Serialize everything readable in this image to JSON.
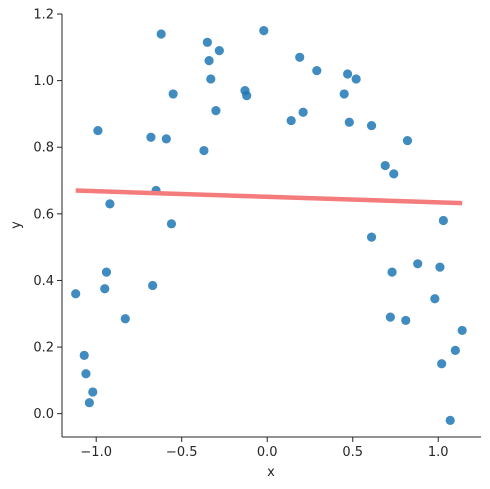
{
  "chart_data": {
    "type": "scatter",
    "title": "",
    "xlabel": "x",
    "ylabel": "y",
    "xlim": [
      -1.2,
      1.25
    ],
    "ylim": [
      -0.07,
      1.2
    ],
    "xticks": [
      -1.0,
      -0.5,
      0.0,
      0.5,
      1.0
    ],
    "xtick_labels": [
      "−1.0",
      "−0.5",
      "0.0",
      "0.5",
      "1.0"
    ],
    "yticks": [
      0.0,
      0.2,
      0.4,
      0.6,
      0.8,
      1.0,
      1.2
    ],
    "ytick_labels": [
      "0.0",
      "0.2",
      "0.4",
      "0.6",
      "0.8",
      "1.0",
      "1.2"
    ],
    "grid": false,
    "point_color": "#1f77b4",
    "line_color": "#f47c7c",
    "points": [
      {
        "x": -1.12,
        "y": 0.36
      },
      {
        "x": -1.07,
        "y": 0.175
      },
      {
        "x": -1.06,
        "y": 0.12
      },
      {
        "x": -1.04,
        "y": 0.033
      },
      {
        "x": -1.02,
        "y": 0.065
      },
      {
        "x": -0.99,
        "y": 0.85
      },
      {
        "x": -0.95,
        "y": 0.375
      },
      {
        "x": -0.94,
        "y": 0.425
      },
      {
        "x": -0.92,
        "y": 0.63
      },
      {
        "x": -0.83,
        "y": 0.285
      },
      {
        "x": -0.68,
        "y": 0.83
      },
      {
        "x": -0.67,
        "y": 0.385
      },
      {
        "x": -0.65,
        "y": 0.67
      },
      {
        "x": -0.62,
        "y": 1.14
      },
      {
        "x": -0.59,
        "y": 0.825
      },
      {
        "x": -0.56,
        "y": 0.57
      },
      {
        "x": -0.55,
        "y": 0.96
      },
      {
        "x": -0.37,
        "y": 0.79
      },
      {
        "x": -0.35,
        "y": 1.115
      },
      {
        "x": -0.34,
        "y": 1.06
      },
      {
        "x": -0.33,
        "y": 1.005
      },
      {
        "x": -0.3,
        "y": 0.91
      },
      {
        "x": -0.28,
        "y": 1.09
      },
      {
        "x": -0.13,
        "y": 0.97
      },
      {
        "x": -0.12,
        "y": 0.955
      },
      {
        "x": -0.02,
        "y": 1.15
      },
      {
        "x": 0.14,
        "y": 0.88
      },
      {
        "x": 0.19,
        "y": 1.07
      },
      {
        "x": 0.21,
        "y": 0.905
      },
      {
        "x": 0.29,
        "y": 1.03
      },
      {
        "x": 0.45,
        "y": 0.96
      },
      {
        "x": 0.47,
        "y": 1.02
      },
      {
        "x": 0.48,
        "y": 0.875
      },
      {
        "x": 0.52,
        "y": 1.005
      },
      {
        "x": 0.61,
        "y": 0.865
      },
      {
        "x": 0.61,
        "y": 0.53
      },
      {
        "x": 0.69,
        "y": 0.745
      },
      {
        "x": 0.72,
        "y": 0.29
      },
      {
        "x": 0.73,
        "y": 0.425
      },
      {
        "x": 0.74,
        "y": 0.72
      },
      {
        "x": 0.81,
        "y": 0.28
      },
      {
        "x": 0.82,
        "y": 0.82
      },
      {
        "x": 0.88,
        "y": 0.45
      },
      {
        "x": 0.98,
        "y": 0.345
      },
      {
        "x": 1.01,
        "y": 0.44
      },
      {
        "x": 1.02,
        "y": 0.15
      },
      {
        "x": 1.03,
        "y": 0.58
      },
      {
        "x": 1.07,
        "y": -0.02
      },
      {
        "x": 1.1,
        "y": 0.19
      },
      {
        "x": 1.14,
        "y": 0.25
      }
    ],
    "fit_line": {
      "x": [
        -1.12,
        1.14
      ],
      "y": [
        0.67,
        0.632
      ]
    }
  }
}
